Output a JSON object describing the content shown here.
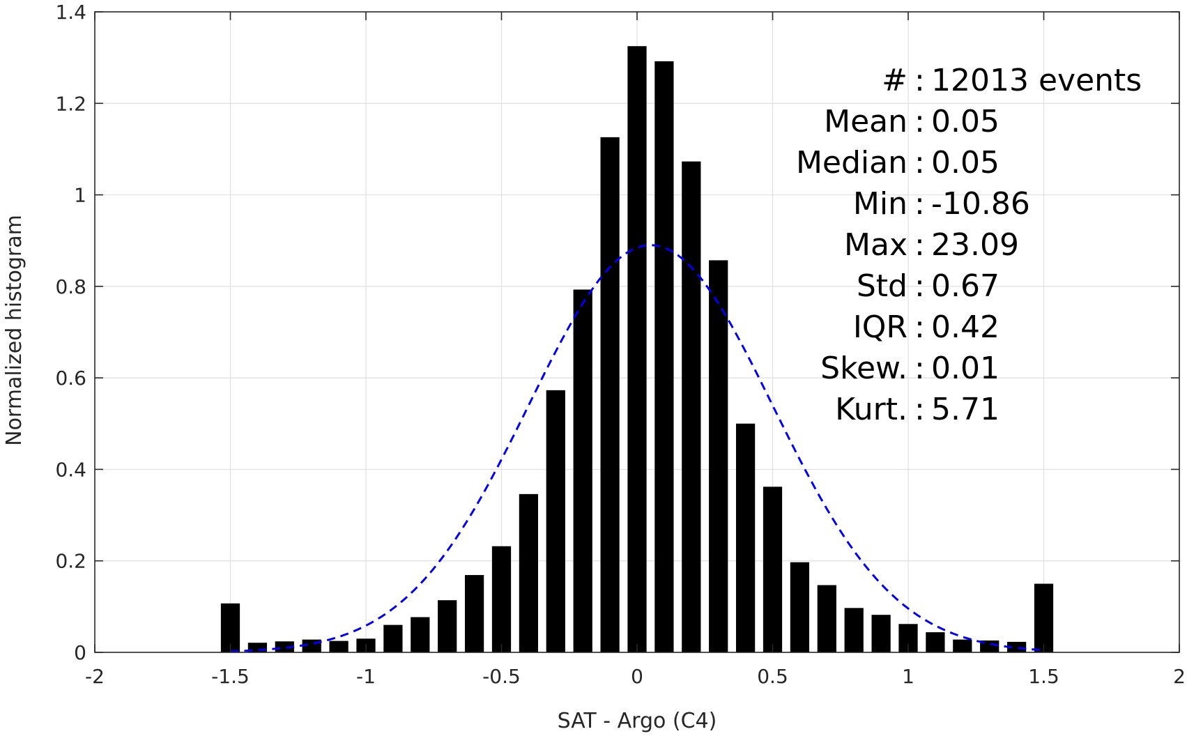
{
  "chart_data": {
    "type": "bar",
    "xlabel": "SAT - Argo (C4)",
    "ylabel": "Normalized histogram",
    "xlim": [
      -2,
      2
    ],
    "ylim": [
      0,
      1.4
    ],
    "xticks": [
      -2,
      -1.5,
      -1,
      -0.5,
      0,
      0.5,
      1,
      1.5,
      2
    ],
    "xtick_labels": [
      "-2",
      "-1.5",
      "-1",
      "-0.5",
      "0",
      "0.5",
      "1",
      "1.5",
      "2"
    ],
    "yticks": [
      0,
      0.2,
      0.4,
      0.6,
      0.8,
      1,
      1.2,
      1.4
    ],
    "ytick_labels": [
      "0",
      "0.2",
      "0.4",
      "0.6",
      "0.8",
      "1",
      "1.2",
      "1.4"
    ],
    "grid": true,
    "bar_width": 0.07,
    "bar_color": "#000000",
    "bins": [
      -1.5,
      -1.4,
      -1.3,
      -1.2,
      -1.1,
      -1.0,
      -0.9,
      -0.8,
      -0.7,
      -0.6,
      -0.5,
      -0.4,
      -0.3,
      -0.2,
      -0.1,
      0.0,
      0.1,
      0.2,
      0.3,
      0.4,
      0.5,
      0.6,
      0.7,
      0.8,
      0.9,
      1.0,
      1.1,
      1.2,
      1.3,
      1.4,
      1.5
    ],
    "values": [
      0.107,
      0.021,
      0.024,
      0.028,
      0.025,
      0.03,
      0.06,
      0.077,
      0.114,
      0.169,
      0.232,
      0.346,
      0.573,
      0.793,
      1.126,
      1.325,
      1.292,
      1.073,
      0.857,
      0.5,
      0.362,
      0.197,
      0.147,
      0.097,
      0.082,
      0.062,
      0.044,
      0.028,
      0.026,
      0.023,
      0.15
    ],
    "fit_curve": {
      "style": "dashed",
      "color": "#0000ee",
      "mean": 0.05,
      "std": 0.45,
      "peak": 0.89,
      "x_range": [
        -1.5,
        1.5
      ]
    },
    "stats": [
      {
        "label": "#  ",
        "value": "12013 events"
      },
      {
        "label": "Mean",
        "value": "0.05"
      },
      {
        "label": "Median",
        "value": "0.05"
      },
      {
        "label": "Min",
        "value": "-10.86"
      },
      {
        "label": "Max",
        "value": "23.09"
      },
      {
        "label": "Std",
        "value": "0.67"
      },
      {
        "label": "IQR",
        "value": "0.42"
      },
      {
        "label": "Skew.",
        "value": "0.01"
      },
      {
        "label": "Kurt.",
        "value": "5.71"
      }
    ]
  }
}
